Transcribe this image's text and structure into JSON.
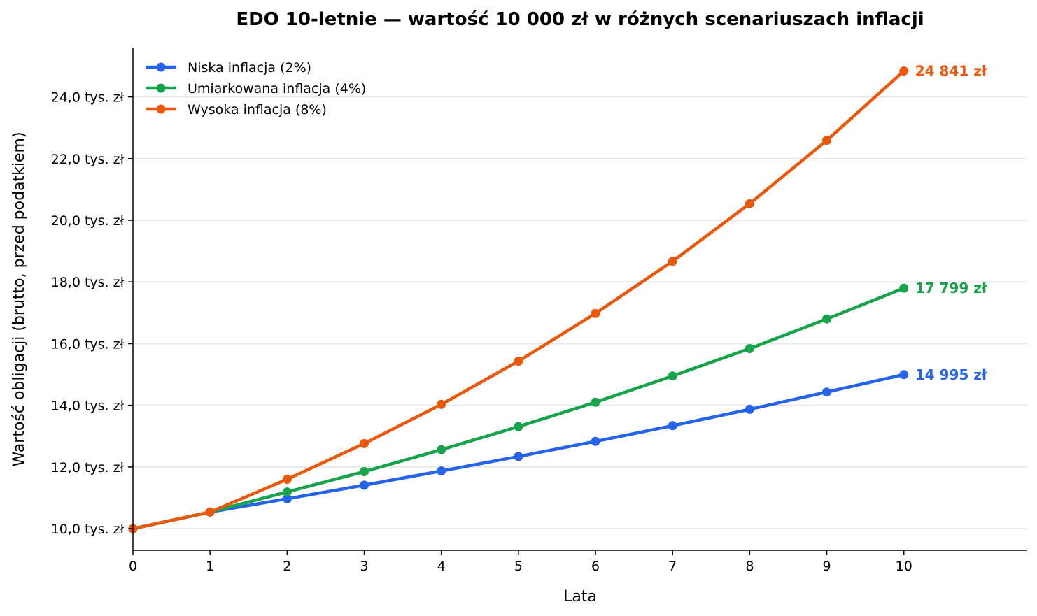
{
  "chart_data": {
    "type": "line",
    "title": "EDO 10-letnie — wartość 10 000 zł w różnych scenariuszach inflacji",
    "xlabel": "Lata",
    "ylabel": "Wartość obligacji (brutto, przed podatkiem)",
    "x": [
      0,
      1,
      2,
      3,
      4,
      5,
      6,
      7,
      8,
      9,
      10
    ],
    "xlim": [
      0,
      11.6
    ],
    "ylim": [
      9300,
      25600
    ],
    "x_ticks": [
      {
        "value": 0,
        "label": "0"
      },
      {
        "value": 1,
        "label": "1"
      },
      {
        "value": 2,
        "label": "2"
      },
      {
        "value": 3,
        "label": "3"
      },
      {
        "value": 4,
        "label": "4"
      },
      {
        "value": 5,
        "label": "5"
      },
      {
        "value": 6,
        "label": "6"
      },
      {
        "value": 7,
        "label": "7"
      },
      {
        "value": 8,
        "label": "8"
      },
      {
        "value": 9,
        "label": "9"
      },
      {
        "value": 10,
        "label": "10"
      }
    ],
    "y_ticks": [
      {
        "value": 10000,
        "label": "10,0 tys. zł"
      },
      {
        "value": 12000,
        "label": "12,0 tys. zł"
      },
      {
        "value": 14000,
        "label": "14,0 tys. zł"
      },
      {
        "value": 16000,
        "label": "16,0 tys. zł"
      },
      {
        "value": 18000,
        "label": "18,0 tys. zł"
      },
      {
        "value": 20000,
        "label": "20,0 tys. zł"
      },
      {
        "value": 22000,
        "label": "22,0 tys. zł"
      },
      {
        "value": 24000,
        "label": "24,0 tys. zł"
      }
    ],
    "grid": "horizontal",
    "legend_position": "top-left",
    "series": [
      {
        "name": "Niska inflacja (2%)",
        "color": "#2563eb",
        "values": [
          10000,
          10540,
          10970,
          11410,
          11870,
          12340,
          12830,
          13340,
          13870,
          14430,
          14995
        ],
        "end_label": "14 995 zł"
      },
      {
        "name": "Umiarkowana inflacja (4%)",
        "color": "#16a34a",
        "values": [
          10000,
          10540,
          11190,
          11850,
          12560,
          13310,
          14100,
          14950,
          15840,
          16800,
          17799
        ],
        "end_label": "17 799 zł"
      },
      {
        "name": "Wysoka inflacja (8%)",
        "color": "#ea580c",
        "values": [
          10000,
          10540,
          11600,
          12760,
          14030,
          15430,
          16980,
          18670,
          20540,
          22590,
          24841
        ],
        "end_label": "24 841 zł"
      }
    ]
  }
}
